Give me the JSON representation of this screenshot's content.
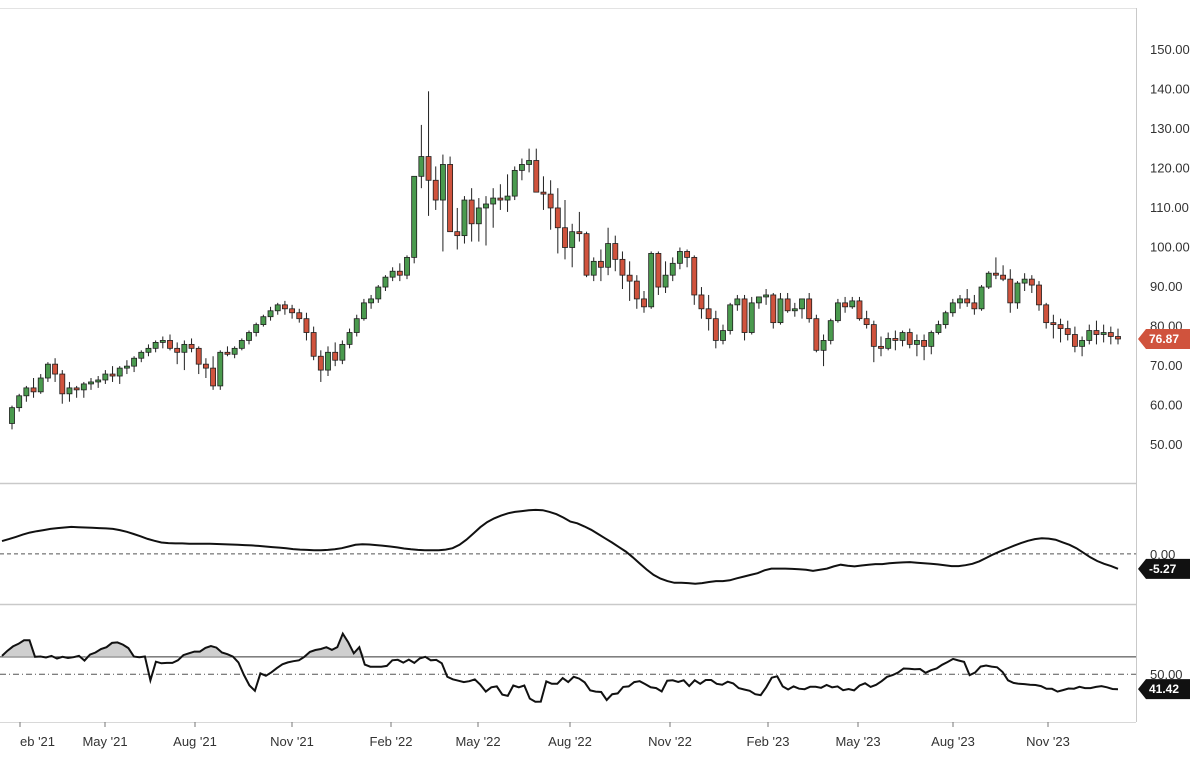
{
  "chart_data": [
    {
      "type": "candlestick",
      "panel": "price",
      "ylim": [
        45,
        155
      ],
      "y_ticks": [
        "150.00",
        "140.00",
        "130.00",
        "120.00",
        "110.00",
        "100.00",
        "90.00",
        "80.00",
        "70.00",
        "60.00",
        "50.00"
      ],
      "last_value_label": "76.87",
      "up_color": "#4a9a4e",
      "down_color": "#d0533d",
      "x_labels": [
        "eb '21",
        "May '21",
        "Aug '21",
        "Nov '21",
        "Feb '22",
        "May '22",
        "Aug '22",
        "Nov '22",
        "Feb '23",
        "May '23",
        "Aug '23",
        "Nov '23"
      ],
      "candles": [
        [
          55.5,
          60,
          54,
          59.5
        ],
        [
          59.5,
          63,
          58.5,
          62.5
        ],
        [
          62.5,
          65,
          61,
          64.5
        ],
        [
          64.5,
          67,
          62,
          63.5
        ],
        [
          63.5,
          68,
          63,
          67
        ],
        [
          67,
          71,
          66,
          70.5
        ],
        [
          70.5,
          72,
          66,
          68
        ],
        [
          68,
          69,
          60.5,
          63
        ],
        [
          63,
          66,
          61,
          64.5
        ],
        [
          64.5,
          65,
          62,
          64
        ],
        [
          64,
          66,
          62,
          65.5
        ],
        [
          65.5,
          67,
          64,
          66
        ],
        [
          66,
          67.5,
          64.5,
          66.5
        ],
        [
          66.5,
          69,
          65.5,
          68
        ],
        [
          68,
          70,
          66,
          67.5
        ],
        [
          67.5,
          70,
          65.5,
          69.5
        ],
        [
          69.5,
          71.5,
          68,
          70
        ],
        [
          70,
          72.5,
          68.5,
          72
        ],
        [
          72,
          74,
          71,
          73.5
        ],
        [
          73.5,
          75.5,
          72.5,
          74.5
        ],
        [
          74.5,
          76.5,
          73.5,
          76
        ],
        [
          76,
          77.5,
          74.5,
          76.5
        ],
        [
          76.5,
          78,
          74,
          74.5
        ],
        [
          74.5,
          76,
          70.5,
          73.5
        ],
        [
          73.5,
          76.5,
          69,
          75.5
        ],
        [
          75.5,
          77,
          73.5,
          74.5
        ],
        [
          74.5,
          75,
          68,
          70.5
        ],
        [
          70.5,
          72,
          67,
          69.5
        ],
        [
          69.5,
          72.5,
          64,
          65
        ],
        [
          65,
          74,
          64,
          73.5
        ],
        [
          73.5,
          75,
          72.5,
          73
        ],
        [
          73,
          75,
          72,
          74.5
        ],
        [
          74.5,
          77,
          74,
          76.5
        ],
        [
          76.5,
          79,
          75.5,
          78.5
        ],
        [
          78.5,
          81,
          77.5,
          80.5
        ],
        [
          80.5,
          83,
          80,
          82.5
        ],
        [
          82.5,
          85,
          81.5,
          84
        ],
        [
          84,
          86,
          83,
          85.5
        ],
        [
          85.5,
          86.5,
          83,
          84.5
        ],
        [
          84.5,
          85.5,
          82,
          83.5
        ],
        [
          83.5,
          84.5,
          81,
          82
        ],
        [
          82,
          83.5,
          76.5,
          78.5
        ],
        [
          78.5,
          80,
          71.5,
          72.5
        ],
        [
          72.5,
          74,
          66,
          69
        ],
        [
          69,
          75,
          67.5,
          73.5
        ],
        [
          73.5,
          76,
          70,
          71.5
        ],
        [
          71.5,
          76.5,
          70.5,
          75.5
        ],
        [
          75.5,
          79.5,
          74.5,
          78.5
        ],
        [
          78.5,
          83,
          77.5,
          82
        ],
        [
          82,
          87,
          81.5,
          86
        ],
        [
          86,
          88,
          84.5,
          87
        ],
        [
          87,
          90.5,
          86,
          90
        ],
        [
          90,
          93,
          89,
          92.5
        ],
        [
          92.5,
          95,
          91.5,
          94
        ],
        [
          94,
          96,
          91.5,
          93
        ],
        [
          93,
          98,
          92,
          97.5
        ],
        [
          97.5,
          118,
          96,
          118
        ],
        [
          118,
          131,
          115,
          123
        ],
        [
          123,
          139.5,
          108,
          117
        ],
        [
          117,
          120.5,
          109.5,
          112
        ],
        [
          112,
          123.5,
          99,
          121
        ],
        [
          121,
          123,
          104,
          104
        ],
        [
          104,
          110,
          99.5,
          103
        ],
        [
          103,
          113,
          101,
          112
        ],
        [
          112,
          115,
          101.5,
          106
        ],
        [
          106,
          112.5,
          101.5,
          110
        ],
        [
          110,
          113,
          100.5,
          111
        ],
        [
          111,
          115,
          105,
          112.5
        ],
        [
          112.5,
          116,
          109.5,
          112
        ],
        [
          112,
          118.5,
          109,
          113
        ],
        [
          113,
          120.5,
          112,
          119.5
        ],
        [
          119.5,
          122.5,
          117,
          121
        ],
        [
          121,
          125,
          119,
          122
        ],
        [
          122,
          125,
          115,
          114
        ],
        [
          114,
          118,
          109.5,
          113.5
        ],
        [
          113.5,
          117,
          104.5,
          110
        ],
        [
          110,
          115,
          98.5,
          105
        ],
        [
          105,
          112,
          97,
          100
        ],
        [
          100,
          106,
          95,
          104
        ],
        [
          104,
          109,
          101.5,
          103.5
        ],
        [
          103.5,
          104,
          92.5,
          93
        ],
        [
          93,
          97.5,
          91.5,
          96.5
        ],
        [
          96.5,
          99.5,
          91.5,
          95
        ],
        [
          95,
          105,
          93,
          101
        ],
        [
          101,
          103,
          94,
          97
        ],
        [
          97,
          99,
          89.5,
          93
        ],
        [
          93,
          96.5,
          86.5,
          91.5
        ],
        [
          91.5,
          93,
          84.5,
          87
        ],
        [
          87,
          89,
          83.5,
          85
        ],
        [
          85,
          99,
          84.5,
          98.5
        ],
        [
          98.5,
          99,
          88,
          90
        ],
        [
          90,
          96.5,
          88.5,
          93
        ],
        [
          93,
          97.5,
          91.5,
          96
        ],
        [
          96,
          100,
          94.5,
          99
        ],
        [
          99,
          99.5,
          95,
          97.5
        ],
        [
          97.5,
          98,
          85.5,
          88
        ],
        [
          88,
          90,
          82,
          84.5
        ],
        [
          84.5,
          88,
          79,
          82
        ],
        [
          82,
          84,
          74.5,
          76.5
        ],
        [
          76.5,
          80.5,
          75.5,
          79
        ],
        [
          79,
          86,
          78,
          85.5
        ],
        [
          85.5,
          88,
          84,
          87
        ],
        [
          87,
          88,
          76.5,
          78.5
        ],
        [
          78.5,
          87.5,
          78,
          86
        ],
        [
          86,
          87.5,
          84.5,
          87.5
        ],
        [
          87.5,
          89.5,
          85.5,
          88
        ],
        [
          88,
          88.5,
          79.5,
          81
        ],
        [
          81,
          88.5,
          80.5,
          87
        ],
        [
          87,
          88.5,
          83.5,
          84
        ],
        [
          84,
          86,
          82.5,
          84.5
        ],
        [
          84.5,
          87,
          82,
          87
        ],
        [
          87,
          88.5,
          81,
          82
        ],
        [
          82,
          83,
          73.5,
          74
        ],
        [
          74,
          78,
          70,
          76.5
        ],
        [
          76.5,
          82,
          75.5,
          81.5
        ],
        [
          81.5,
          87,
          81,
          86
        ],
        [
          86,
          87.5,
          83.5,
          85
        ],
        [
          85,
          87.5,
          84.5,
          86.5
        ],
        [
          86.5,
          87.5,
          81.5,
          82
        ],
        [
          82,
          84,
          79.5,
          80.5
        ],
        [
          80.5,
          81.5,
          71,
          75
        ],
        [
          75,
          77.5,
          72.5,
          74.5
        ],
        [
          74.5,
          78.5,
          74,
          77
        ],
        [
          77,
          79,
          74,
          76.5
        ],
        [
          76.5,
          79,
          75,
          78.5
        ],
        [
          78.5,
          79.5,
          74.5,
          75.5
        ],
        [
          75.5,
          78,
          72.5,
          76.5
        ],
        [
          76.5,
          78,
          71.5,
          75
        ],
        [
          75,
          79,
          73,
          78.5
        ],
        [
          78.5,
          81.5,
          78,
          80.5
        ],
        [
          80.5,
          84,
          79.5,
          83.5
        ],
        [
          83.5,
          87,
          82.5,
          86
        ],
        [
          86,
          88,
          84.5,
          87
        ],
        [
          87,
          89.5,
          85,
          86
        ],
        [
          86,
          88,
          83,
          84.5
        ],
        [
          84.5,
          90.5,
          84,
          90
        ],
        [
          90,
          94,
          89.5,
          93.5
        ],
        [
          93.5,
          97.5,
          92,
          93
        ],
        [
          93,
          95.5,
          91.5,
          92
        ],
        [
          92,
          94.5,
          83.5,
          86
        ],
        [
          86,
          91.5,
          84.5,
          91
        ],
        [
          91,
          93.5,
          89,
          92
        ],
        [
          92,
          93,
          88.5,
          90.5
        ],
        [
          90.5,
          91.5,
          84,
          85.5
        ],
        [
          85.5,
          86,
          79.5,
          81
        ],
        [
          81,
          83,
          77,
          80.5
        ],
        [
          80.5,
          82,
          76,
          79.5
        ],
        [
          79.5,
          81.5,
          76.5,
          78
        ],
        [
          78,
          80,
          73.5,
          75
        ],
        [
          75,
          77.5,
          72.5,
          76.5
        ],
        [
          76.5,
          80.5,
          75.5,
          79
        ],
        [
          79,
          81.5,
          75.5,
          78
        ],
        [
          78,
          80.5,
          76,
          78.5
        ],
        [
          78.5,
          80,
          75.5,
          77.5
        ],
        [
          77.5,
          79.5,
          75.5,
          76.87
        ]
      ]
    },
    {
      "type": "line",
      "panel": "oscillator",
      "ylim": [
        -14.5,
        19
      ],
      "ref_line": 0,
      "ref_label": "0.00",
      "last_value_label": "-5.27",
      "values": [
        4.5,
        5.2,
        6,
        6.8,
        7.5,
        8,
        8.4,
        8.8,
        9.1,
        9.3,
        9.5,
        9.4,
        9.3,
        9.2,
        9.1,
        9,
        8.8,
        8.4,
        7.8,
        7,
        6.2,
        5.3,
        4.6,
        4,
        3.8,
        3.7,
        3.7,
        3.6,
        3.6,
        3.6,
        3.6,
        3.5,
        3.4,
        3.3,
        3.2,
        3.1,
        3,
        2.8,
        2.6,
        2.4,
        2.2,
        2,
        1.7,
        1.5,
        1.4,
        1.3,
        1.3,
        1.4,
        1.6,
        2,
        2.6,
        3.2,
        3.4,
        3.3,
        3.1,
        2.9,
        2.6,
        2.3,
        1.9,
        1.6,
        1.4,
        1.3,
        1.3,
        1.3,
        1.5,
        2,
        3.2,
        5,
        7.2,
        9.4,
        11.2,
        12.5,
        13.5,
        14.3,
        14.8,
        15.1,
        15.4,
        15.5,
        15.4,
        14.8,
        14,
        12.8,
        11.4,
        10.8,
        9.7,
        8.5,
        7,
        5.5,
        4,
        2.4,
        0.8,
        -1.2,
        -3.4,
        -5.5,
        -7.4,
        -8.7,
        -9.6,
        -10.2,
        -10.2,
        -10.3,
        -10.5,
        -10.3,
        -9.9,
        -9.6,
        -9.6,
        -9.3,
        -8.6,
        -8,
        -7.4,
        -6.8,
        -5.8,
        -5.2,
        -5.2,
        -5.2,
        -5.3,
        -5.4,
        -5.6,
        -6,
        -5.6,
        -5.2,
        -4.4,
        -3.8,
        -4.2,
        -4.4,
        -4.1,
        -3.8,
        -3.6,
        -3.6,
        -3.3,
        -3.1,
        -3,
        -2.9,
        -3.1,
        -3.3,
        -3.5,
        -3.7,
        -4,
        -4.3,
        -4.3,
        -4,
        -3.5,
        -2.6,
        -1.4,
        -0.2,
        0.9,
        1.9,
        2.9,
        3.8,
        4.6,
        5.2,
        5.5,
        5.4,
        5,
        4.1,
        3.2,
        2,
        0.4,
        -1.2,
        -2.5,
        -3.5,
        -4.3,
        -5.27
      ]
    },
    {
      "type": "area-line",
      "panel": "rsi",
      "ylim": [
        26,
        80
      ],
      "upper_level": 60,
      "middle_level": 50,
      "middle_label": "50.00",
      "last_value_label": "41.42",
      "values": [
        60.5,
        63.5,
        66,
        67.5,
        69.5,
        69.5,
        60,
        60.2,
        59.6,
        60.5,
        59,
        60,
        59.3,
        59.8,
        60.5,
        57.8,
        61.3,
        62.5,
        64.5,
        65.5,
        68,
        68.3,
        67,
        65,
        60.1,
        59.8,
        60.2,
        46.5,
        57.2,
        56.3,
        56.5,
        56.5,
        58,
        61,
        62,
        63,
        63,
        65.1,
        66.2,
        65.3,
        62.5,
        61.5,
        60.1,
        56.8,
        49.6,
        43.6,
        40.5,
        50.5,
        49.1,
        51.1,
        53.5,
        55.7,
        56.8,
        57.5,
        58,
        60,
        62.8,
        63.9,
        64.5,
        65.5,
        64,
        65.5,
        73.3,
        68.3,
        62,
        65.5,
        55.5,
        54.3,
        54.3,
        54.3,
        54.8,
        58,
        58.3,
        56.7,
        58.4,
        56.5,
        59.1,
        60,
        58,
        58.2,
        56.3,
        48.5,
        47.1,
        46.3,
        45.5,
        46,
        47,
        44,
        40,
        42.5,
        43,
        38.3,
        37.6,
        43.5,
        42.5,
        43.5,
        36,
        34.2,
        34.3,
        45.9,
        44.5,
        44.5,
        47.8,
        45.5,
        48.5,
        47.5,
        45.3,
        40.7,
        40,
        39.8,
        35.2,
        38.5,
        39,
        42.7,
        43,
        45.5,
        46,
        44.3,
        42.5,
        42,
        40.1,
        46.3,
        46.5,
        45.6,
        46.5,
        43.2,
        46.5,
        44.5,
        46.7,
        46.7,
        44.5,
        44,
        45.7,
        44.7,
        42,
        41.2,
        40.5,
        38.5,
        38,
        42.5,
        48,
        48.8,
        43,
        41.2,
        43,
        41.7,
        41.4,
        42.8,
        42.8,
        42.2,
        43.8,
        42.5,
        43,
        40.8,
        41.5,
        40.7,
        43.5,
        44.8,
        42.7,
        43.9,
        46,
        48.5,
        49.5,
        51,
        53.3,
        53.1,
        52.8,
        53,
        50.8,
        52.3,
        53.3,
        55.4,
        57,
        58.8,
        57.9,
        57.1,
        49.5,
        51,
        54.4,
        55,
        54.4,
        54,
        51.3,
        46.5,
        45,
        44.5,
        44.3,
        44,
        43.8,
        43.2,
        41.6,
        41.6,
        40,
        40.9,
        41.8,
        41.7,
        42.8,
        42,
        42,
        42.7,
        43.2,
        42.5,
        41.5,
        41.42
      ]
    }
  ]
}
